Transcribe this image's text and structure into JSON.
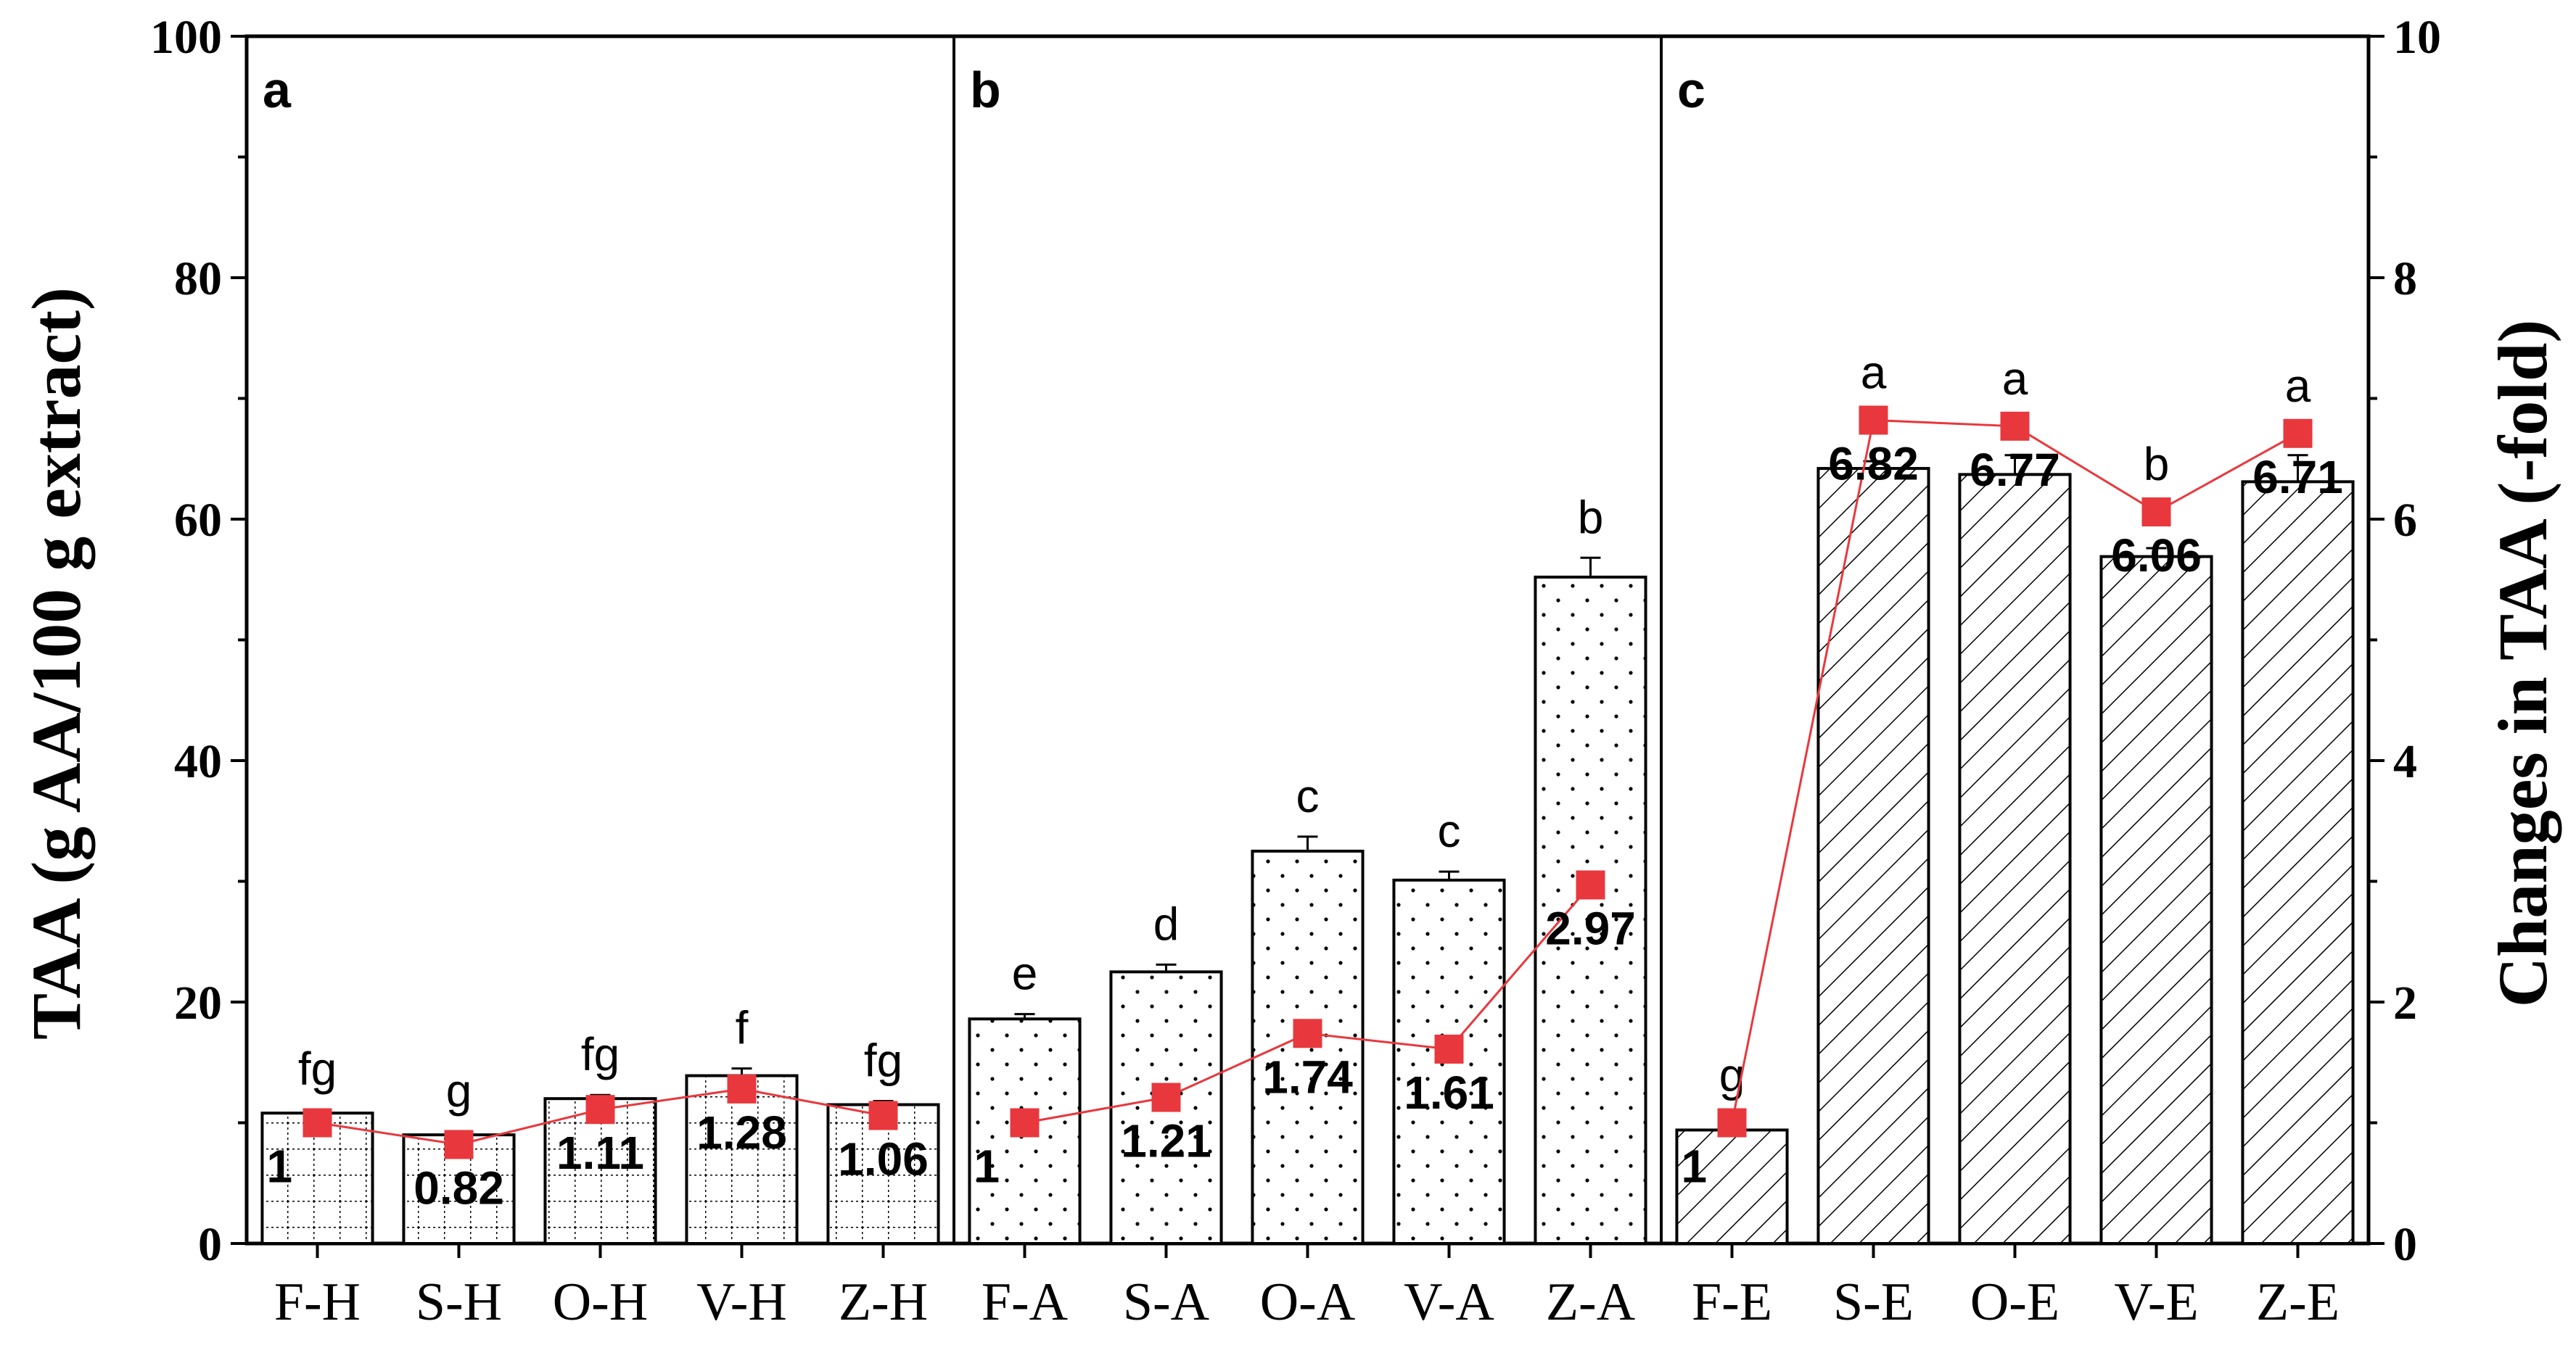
{
  "chart_data": {
    "type": "bar",
    "categories": [
      "F-H",
      "S-H",
      "O-H",
      "V-H",
      "Z-H",
      "F-A",
      "S-A",
      "O-A",
      "V-A",
      "Z-A",
      "F-E",
      "S-E",
      "O-E",
      "V-E",
      "Z-E"
    ],
    "series": [
      {
        "name": "TAA",
        "axis": "left",
        "values": [
          10.8,
          9.0,
          12.0,
          13.9,
          11.5,
          18.6,
          22.5,
          32.5,
          30.1,
          55.2,
          9.4,
          64.2,
          63.7,
          56.9,
          63.1
        ],
        "errors": [
          0.3,
          0.3,
          0.3,
          0.6,
          0.3,
          0.4,
          0.6,
          1.2,
          0.7,
          1.6,
          0.2,
          0.6,
          1.6,
          0.7,
          2.2
        ],
        "letters": [
          "fg",
          "g",
          "fg",
          "f",
          "fg",
          "e",
          "d",
          "c",
          "c",
          "b",
          "g",
          "a",
          "a",
          "b",
          "a"
        ],
        "pattern": [
          "grid",
          "grid",
          "grid",
          "grid",
          "grid",
          "dots",
          "dots",
          "dots",
          "dots",
          "dots",
          "hatch",
          "hatch",
          "hatch",
          "hatch",
          "hatch"
        ]
      },
      {
        "name": "Changes in TAA",
        "axis": "right",
        "type": "line",
        "values": [
          1,
          0.82,
          1.11,
          1.28,
          1.06,
          1,
          1.21,
          1.74,
          1.61,
          2.97,
          1,
          6.82,
          6.77,
          6.06,
          6.71
        ],
        "labels": [
          "1",
          "0.82",
          "1.11",
          "1.28",
          "1.06",
          "1",
          "1.21",
          "1.74",
          "1.61",
          "2.97",
          "1",
          "6.82",
          "6.77",
          "6.06",
          "6.71"
        ],
        "segments": [
          [
            0,
            4
          ],
          [
            5,
            9
          ],
          [
            10,
            14
          ]
        ],
        "color": "#e8383d"
      }
    ],
    "panels": [
      {
        "label": "a",
        "from": 0,
        "to": 4
      },
      {
        "label": "b",
        "from": 5,
        "to": 9
      },
      {
        "label": "c",
        "from": 10,
        "to": 14
      }
    ],
    "ylabel": "TAA (g AA/100 g extract)",
    "y2label": "Changes in TAA (-fold)",
    "ylim": [
      0,
      100
    ],
    "y2lim": [
      0,
      10
    ],
    "yticks": [
      "0",
      "20",
      "40",
      "60",
      "80",
      "100"
    ],
    "y2ticks": [
      "0",
      "2",
      "4",
      "6",
      "8",
      "10"
    ],
    "grid": false
  }
}
